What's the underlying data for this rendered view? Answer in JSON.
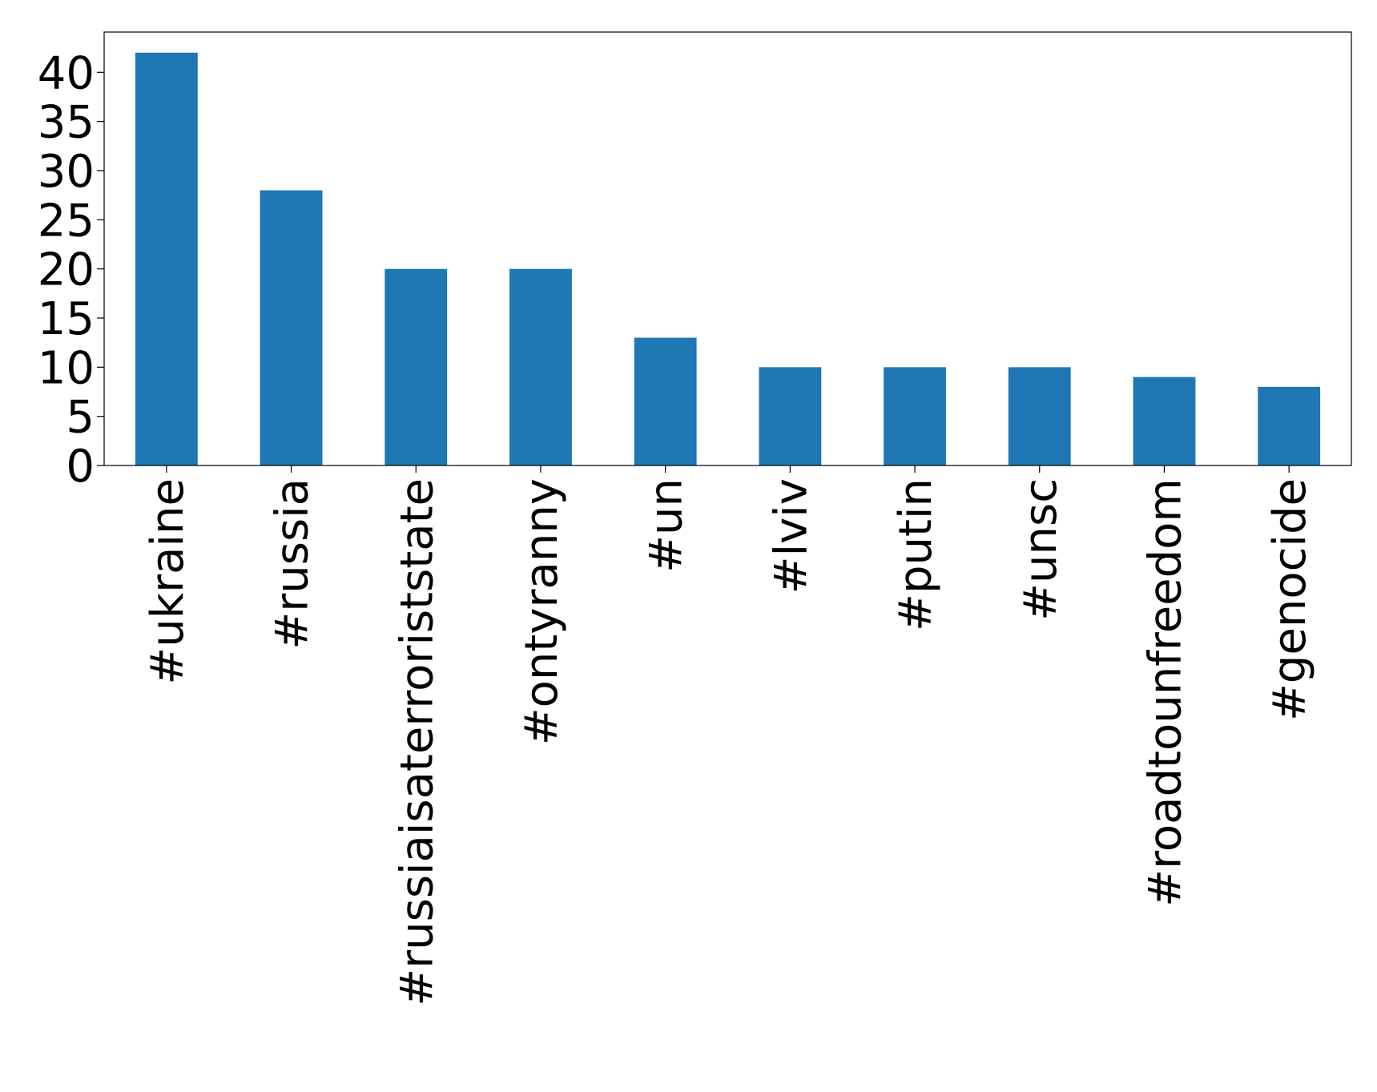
{
  "chart_data": {
    "type": "bar",
    "categories": [
      "#ukraine",
      "#russia",
      "#russiaisaterroriststate",
      "#ontyranny",
      "#un",
      "#lviv",
      "#putin",
      "#unsc",
      "#roadtounfreedom",
      "#genocide"
    ],
    "values": [
      42,
      28,
      20,
      20,
      13,
      10,
      10,
      10,
      9,
      8
    ],
    "color": "#1f77b4",
    "ylim": [
      0,
      44.1
    ],
    "yticks": [
      0,
      5,
      10,
      15,
      20,
      25,
      30,
      35,
      40
    ],
    "grid": false
  }
}
